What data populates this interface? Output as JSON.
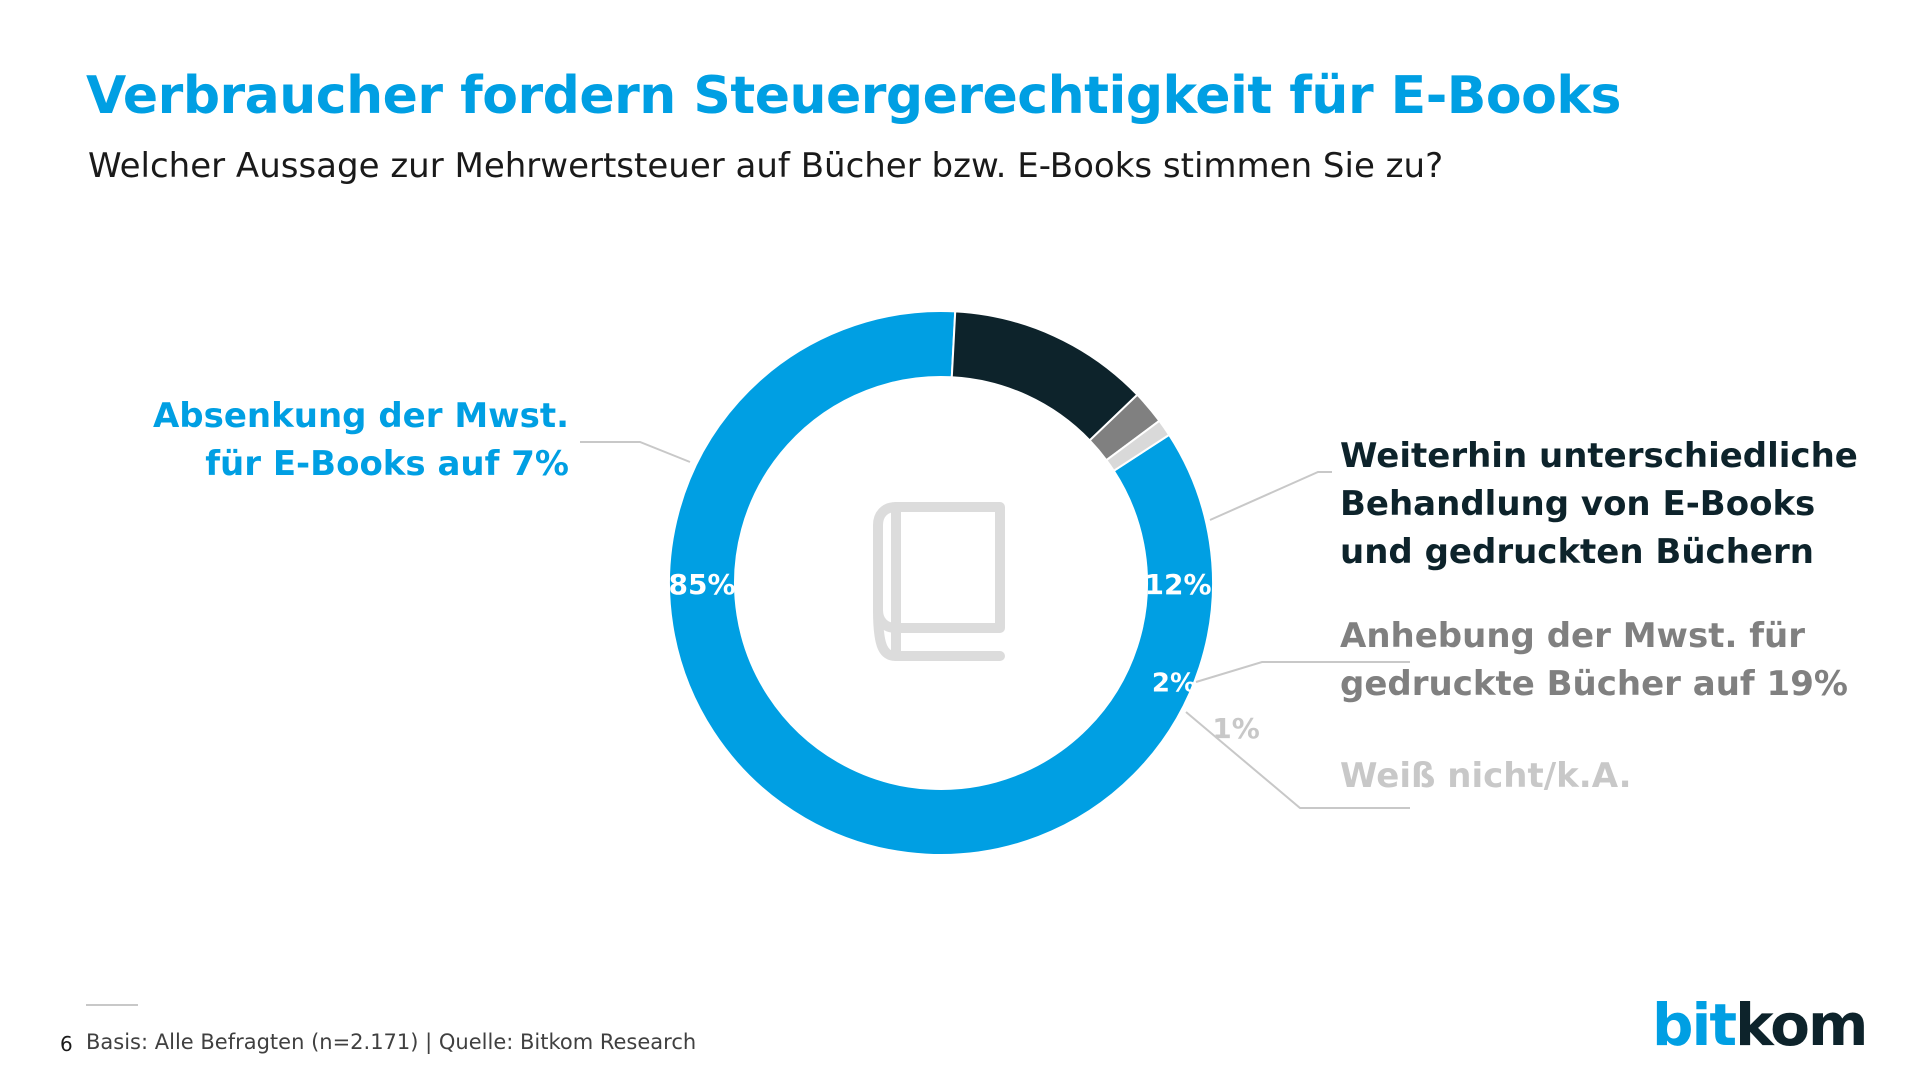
{
  "title": "Verbraucher fordern Steuergerechtigkeit für E-Books",
  "subtitle": "Welcher Aussage zur Mehrwertsteuer auf Bücher bzw. E-Books stimmen Sie zu?",
  "chart_data": {
    "type": "pie",
    "variant": "donut",
    "title": "Verbraucher fordern Steuergerechtigkeit für E-Books",
    "subtitle": "Welcher Aussage zur Mehrwertsteuer auf Bücher bzw. E-Books stimmen Sie zu?",
    "center_icon": "book-icon",
    "slices": [
      {
        "label_lines": [
          "Absenkung der Mwst.",
          "für E-Books auf 7%"
        ],
        "value": 85,
        "display": "85%",
        "color": "#009fe3",
        "label_color": "#009fe3"
      },
      {
        "label_lines": [
          "Weiterhin unterschiedliche",
          "Behandlung von E-Books",
          "und gedruckten Büchern"
        ],
        "value": 12,
        "display": "12%",
        "color": "#0d232b",
        "label_color": "#0d232b"
      },
      {
        "label_lines": [
          "Anhebung der Mwst. für",
          "gedruckte Bücher auf 19%"
        ],
        "value": 2,
        "display": "2%",
        "color": "#808080",
        "label_color": "#808080"
      },
      {
        "label_lines": [
          "Weiß nicht/k.A."
        ],
        "value": 1,
        "display": "1%",
        "color": "#d9d9d9",
        "label_color": "#c8c8c8"
      }
    ]
  },
  "footer": {
    "page_number": "6",
    "source": "Basis: Alle Befragten (n=2.171) | Quelle: Bitkom Research"
  },
  "logo": {
    "text_part1": "bit",
    "text_part2": "kom",
    "color_part1": "#009fe3",
    "color_part2": "#0d232b"
  }
}
